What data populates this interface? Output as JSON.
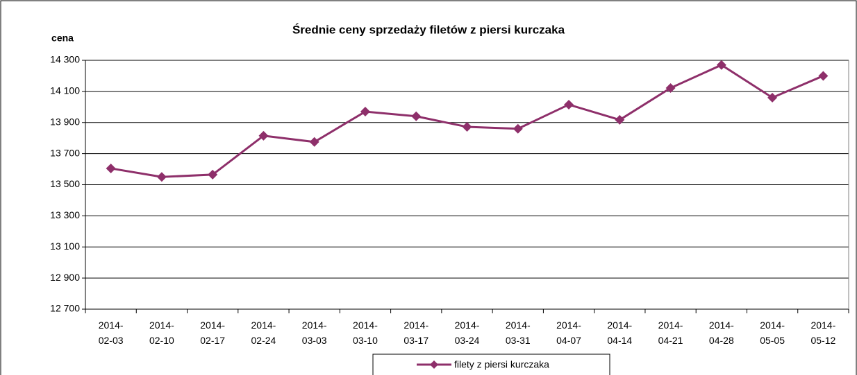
{
  "chart_data": {
    "type": "line",
    "title": "Średnie ceny sprzedaży filetów z piersi kurczaka",
    "y_label": "cena",
    "categories": [
      "2014-02-03",
      "2014-02-10",
      "2014-02-17",
      "2014-02-24",
      "2014-03-03",
      "2014-03-10",
      "2014-03-17",
      "2014-03-24",
      "2014-03-31",
      "2014-04-07",
      "2014-04-14",
      "2014-04-21",
      "2014-04-28",
      "2014-05-05",
      "2014-05-12"
    ],
    "series": [
      {
        "name": "filety z piersi kurczaka",
        "color": "#8e2f6a",
        "values": [
          13605,
          13550,
          13565,
          13815,
          13775,
          13970,
          13940,
          13872,
          13860,
          14015,
          13917,
          14122,
          14270,
          14060,
          14200
        ]
      }
    ],
    "ylim": [
      12700,
      14300
    ],
    "yticks": [
      {
        "value": 12700,
        "label": "12 700"
      },
      {
        "value": 12900,
        "label": "12 900"
      },
      {
        "value": 13100,
        "label": "13 100"
      },
      {
        "value": 13300,
        "label": "13 300"
      },
      {
        "value": 13500,
        "label": "13 500"
      },
      {
        "value": 13700,
        "label": "13 700"
      },
      {
        "value": 13900,
        "label": "13 900"
      },
      {
        "value": 14100,
        "label": "14 100"
      },
      {
        "value": 14300,
        "label": "14 300"
      }
    ],
    "grid": true
  }
}
